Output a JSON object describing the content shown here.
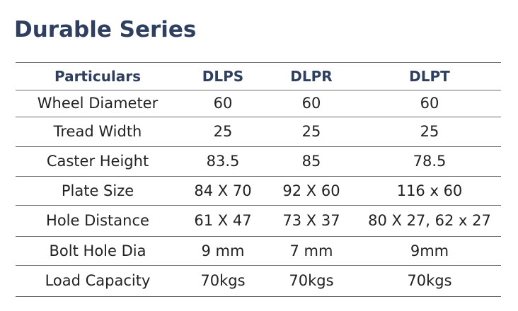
{
  "header": {
    "title": "Durable Series"
  },
  "table": {
    "columns": [
      "Particulars",
      "DLPS",
      "DLPR",
      "DLPT"
    ],
    "rows": [
      [
        "Wheel Diameter",
        "60",
        "60",
        "60"
      ],
      [
        "Tread Width",
        "25",
        "25",
        "25"
      ],
      [
        "Caster Height",
        "83.5",
        "85",
        "78.5"
      ],
      [
        "Plate Size",
        "84 X 70",
        "92 X 60",
        "116 x 60"
      ],
      [
        "Hole Distance",
        "61 X 47",
        "73 X 37",
        "80 X 27, 62 x 27"
      ],
      [
        "Bolt Hole Dia",
        "9 mm",
        "7 mm",
        "9mm"
      ],
      [
        "Load Capacity",
        "70kgs",
        "70kgs",
        "70kgs"
      ]
    ]
  }
}
